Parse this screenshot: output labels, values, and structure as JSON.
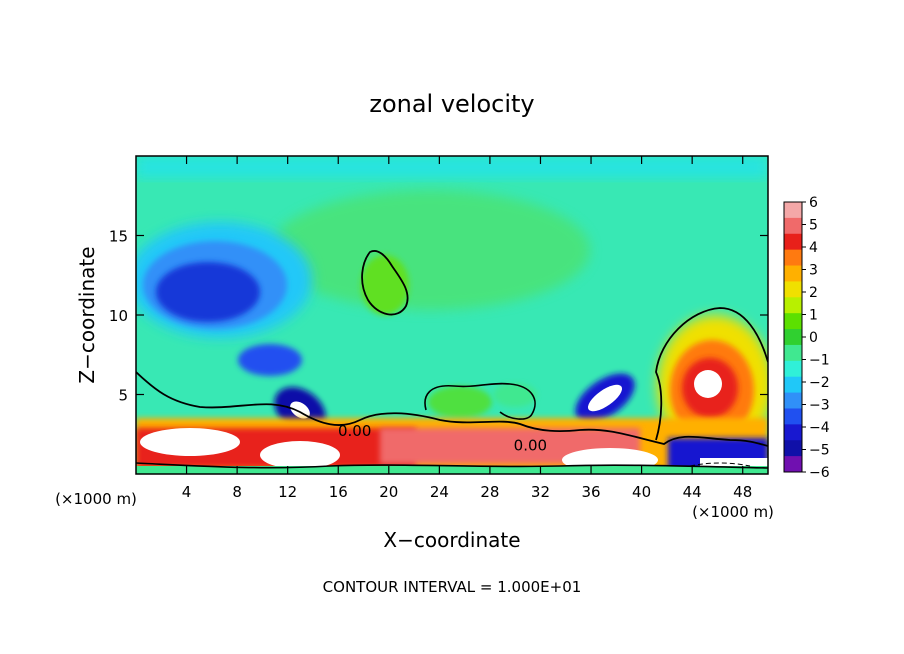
{
  "chart_data": {
    "type": "heatmap",
    "title": "zonal velocity",
    "xlabel": "X−coordinate",
    "ylabel": "Z−coordinate",
    "x_unit_left": "(×1000 m)",
    "x_unit_right": "(×1000 m)",
    "x_range": [
      0,
      50
    ],
    "z_range": [
      0,
      20
    ],
    "x_ticks": [
      4,
      8,
      12,
      16,
      20,
      24,
      28,
      32,
      36,
      40,
      44,
      48
    ],
    "z_ticks": [
      5,
      10,
      15
    ],
    "contour_labels": [
      {
        "text": "0.00",
        "x": 17.3,
        "z": 2.7
      },
      {
        "text": "0.00",
        "x": 31.2,
        "z": 1.8
      }
    ],
    "footer": "CONTOUR INTERVAL = 1.000E+01",
    "colorbar": {
      "ticks": [
        "6",
        "5",
        "4",
        "3",
        "2",
        "1",
        "0",
        "−1",
        "−2",
        "−3",
        "−4",
        "−5",
        "−6"
      ],
      "colors": [
        "#f4a8a8",
        "#f06a6a",
        "#e8201a",
        "#ff7a10",
        "#ffb000",
        "#f0e000",
        "#b8f000",
        "#5ce000",
        "#30d030",
        "#40e890",
        "#30f0d8",
        "#20c8f8",
        "#3090f8",
        "#2050f0",
        "#1818d0",
        "#1010a8",
        "#7010b0"
      ]
    },
    "field_features": [
      {
        "label": "background",
        "value": -1.3,
        "color": "#38e8b4"
      },
      {
        "label": "upper-left jet core",
        "x": 5.5,
        "z": 11.5,
        "value": -4.6,
        "color": "#1838d8"
      },
      {
        "label": "mid-level positive cell",
        "x": 19.5,
        "z": 12.0,
        "value": 1.0,
        "color": "#60e020"
      },
      {
        "label": "lee eddy",
        "x": 13.5,
        "z": 3.8,
        "value": -5.5,
        "color": "#1010a8"
      },
      {
        "label": "lee eddy",
        "x": 38.0,
        "z": 4.8,
        "value": -5.5,
        "color": "#1010a8"
      },
      {
        "label": "near-surface positive layer",
        "x": 8.0,
        "z": 2.0,
        "value": 6.0,
        "color": "#f06a6a"
      },
      {
        "label": "right positive dome",
        "x": 45.5,
        "z": 5.5,
        "value": 6.0,
        "color": "#f06a6a"
      },
      {
        "label": "top-layer negative band",
        "x": 25.0,
        "z": 19.5,
        "value": -2.0,
        "color": "#28e4e0"
      }
    ]
  }
}
